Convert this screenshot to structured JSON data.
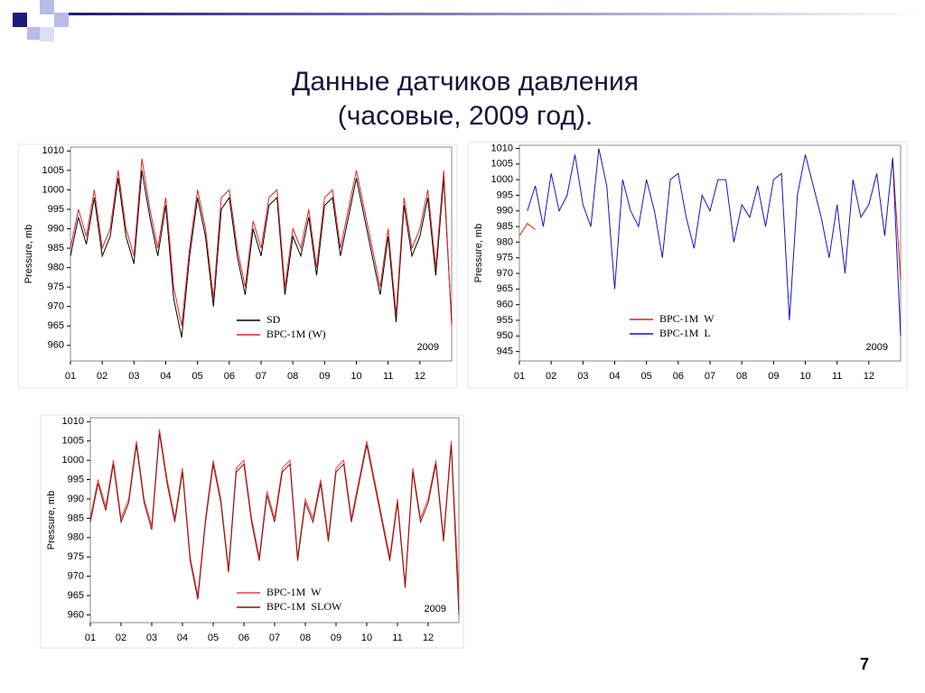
{
  "title": "Данные датчиков давления",
  "subtitle": "(часовые, 2009 год).",
  "page_number": "7",
  "chart_data": [
    {
      "type": "line",
      "y_label": "Pressure, mb",
      "annotation": "2009",
      "xlim": [
        0,
        12
      ],
      "ylim": [
        956,
        1011
      ],
      "xticks": [
        {
          "value": 0,
          "label": "01"
        },
        {
          "value": 1,
          "label": "02"
        },
        {
          "value": 2,
          "label": "03"
        },
        {
          "value": 3,
          "label": "04"
        },
        {
          "value": 4,
          "label": "05"
        },
        {
          "value": 5,
          "label": "06"
        },
        {
          "value": 6,
          "label": "07"
        },
        {
          "value": 7,
          "label": "08"
        },
        {
          "value": 8,
          "label": "09"
        },
        {
          "value": 9,
          "label": "10"
        },
        {
          "value": 10,
          "label": "11"
        },
        {
          "value": 11,
          "label": "12"
        }
      ],
      "yticks": [
        960,
        965,
        970,
        975,
        980,
        985,
        990,
        995,
        1000,
        1005,
        1010
      ],
      "x": [
        0,
        0.25,
        0.5,
        0.75,
        1,
        1.25,
        1.5,
        1.75,
        2,
        2.25,
        2.5,
        2.75,
        3,
        3.25,
        3.5,
        3.75,
        4,
        4.25,
        4.5,
        4.75,
        5,
        5.25,
        5.5,
        5.75,
        6,
        6.25,
        6.5,
        6.75,
        7,
        7.25,
        7.5,
        7.75,
        8,
        8.25,
        8.5,
        8.75,
        9,
        9.25,
        9.5,
        9.75,
        10,
        10.25,
        10.5,
        10.75,
        11,
        11.25,
        11.5,
        11.75,
        12
      ],
      "series": [
        {
          "name": "SD",
          "color": "#000000",
          "values": [
            983,
            993,
            986,
            998,
            983,
            988,
            1003,
            988,
            981,
            1005,
            993,
            983,
            996,
            972,
            962,
            983,
            998,
            988,
            970,
            995,
            998,
            983,
            973,
            990,
            983,
            996,
            998,
            973,
            988,
            983,
            993,
            978,
            996,
            998,
            983,
            993,
            1003,
            993,
            983,
            973,
            988,
            966,
            996,
            983,
            988,
            998,
            978,
            1003,
            966
          ]
        },
        {
          "name": "BPC-1M (W)",
          "color": "#e02020",
          "values": [
            985,
            995,
            988,
            1000,
            985,
            990,
            1005,
            990,
            983,
            1008,
            995,
            985,
            998,
            975,
            965,
            985,
            1000,
            990,
            972,
            998,
            1000,
            985,
            975,
            992,
            985,
            998,
            1000,
            975,
            990,
            985,
            995,
            980,
            998,
            1000,
            985,
            995,
            1005,
            995,
            985,
            975,
            990,
            968,
            998,
            985,
            990,
            1000,
            980,
            1005,
            965
          ]
        }
      ]
    },
    {
      "type": "line",
      "y_label": "Pressure, mb",
      "annotation": "2009",
      "xlim": [
        0,
        12
      ],
      "ylim": [
        942,
        1011
      ],
      "xticks": [
        {
          "value": 0,
          "label": "01"
        },
        {
          "value": 1,
          "label": "02"
        },
        {
          "value": 2,
          "label": "03"
        },
        {
          "value": 3,
          "label": "04"
        },
        {
          "value": 4,
          "label": "05"
        },
        {
          "value": 5,
          "label": "06"
        },
        {
          "value": 6,
          "label": "07"
        },
        {
          "value": 7,
          "label": "08"
        },
        {
          "value": 8,
          "label": "09"
        },
        {
          "value": 9,
          "label": "10"
        },
        {
          "value": 10,
          "label": "11"
        },
        {
          "value": 11,
          "label": "12"
        }
      ],
      "yticks": [
        945,
        950,
        955,
        960,
        965,
        970,
        975,
        980,
        985,
        990,
        995,
        1000,
        1005,
        1010
      ],
      "x": [
        0,
        0.25,
        0.5,
        0.75,
        1,
        1.25,
        1.5,
        1.75,
        2,
        2.25,
        2.5,
        2.75,
        3,
        3.25,
        3.5,
        3.75,
        4,
        4.25,
        4.5,
        4.75,
        5,
        5.25,
        5.5,
        5.75,
        6,
        6.25,
        6.5,
        6.75,
        7,
        7.25,
        7.5,
        7.75,
        8,
        8.25,
        8.5,
        8.75,
        9,
        9.25,
        9.5,
        9.75,
        10,
        10.25,
        10.5,
        10.75,
        11,
        11.25,
        11.5,
        11.75,
        12
      ],
      "series": [
        {
          "name": "BPC-1M  W",
          "color": "#e02020",
          "values": [
            982,
            986,
            984,
            null,
            null,
            null,
            null,
            null,
            null,
            null,
            null,
            null,
            null,
            null,
            null,
            null,
            null,
            null,
            null,
            null,
            null,
            null,
            null,
            null,
            null,
            null,
            null,
            null,
            null,
            null,
            null,
            null,
            null,
            null,
            null,
            null,
            null,
            null,
            null,
            null,
            null,
            null,
            null,
            null,
            null,
            null,
            null,
            1007,
            968
          ]
        },
        {
          "name": "BPC-1M  L",
          "color": "#1414c0",
          "values": [
            null,
            990,
            998,
            985,
            1002,
            990,
            995,
            1008,
            992,
            985,
            1010,
            998,
            965,
            1000,
            990,
            985,
            1000,
            990,
            975,
            1000,
            1002,
            988,
            978,
            995,
            990,
            1000,
            1000,
            980,
            992,
            988,
            998,
            985,
            1000,
            1002,
            955,
            995,
            1008,
            998,
            988,
            975,
            992,
            970,
            1000,
            988,
            992,
            1002,
            982,
            1007,
            950
          ]
        }
      ]
    },
    {
      "type": "line",
      "y_label": "Pressure, mb",
      "annotation": "2009",
      "xlim": [
        0,
        12
      ],
      "ylim": [
        958,
        1011
      ],
      "xticks": [
        {
          "value": 0,
          "label": "01"
        },
        {
          "value": 1,
          "label": "02"
        },
        {
          "value": 2,
          "label": "03"
        },
        {
          "value": 3,
          "label": "04"
        },
        {
          "value": 4,
          "label": "05"
        },
        {
          "value": 5,
          "label": "06"
        },
        {
          "value": 6,
          "label": "07"
        },
        {
          "value": 7,
          "label": "08"
        },
        {
          "value": 8,
          "label": "09"
        },
        {
          "value": 9,
          "label": "10"
        },
        {
          "value": 10,
          "label": "11"
        },
        {
          "value": 11,
          "label": "12"
        }
      ],
      "yticks": [
        960,
        965,
        970,
        975,
        980,
        985,
        990,
        995,
        1000,
        1005,
        1010
      ],
      "x": [
        0,
        0.25,
        0.5,
        0.75,
        1,
        1.25,
        1.5,
        1.75,
        2,
        2.25,
        2.5,
        2.75,
        3,
        3.25,
        3.5,
        3.75,
        4,
        4.25,
        4.5,
        4.75,
        5,
        5.25,
        5.5,
        5.75,
        6,
        6.25,
        6.5,
        6.75,
        7,
        7.25,
        7.5,
        7.75,
        8,
        8.25,
        8.5,
        8.75,
        9,
        9.25,
        9.5,
        9.75,
        10,
        10.25,
        10.5,
        10.75,
        11,
        11.25,
        11.5,
        11.75,
        12
      ],
      "series": [
        {
          "name": "BPC-1M  W",
          "color": "#e04040",
          "values": [
            985,
            995,
            988,
            1000,
            985,
            990,
            1005,
            990,
            983,
            1008,
            995,
            985,
            998,
            975,
            965,
            985,
            1000,
            990,
            972,
            998,
            1000,
            985,
            975,
            992,
            985,
            998,
            1000,
            975,
            990,
            985,
            995,
            980,
            998,
            1000,
            985,
            995,
            1005,
            995,
            985,
            975,
            990,
            968,
            998,
            985,
            990,
            1000,
            980,
            1005,
            965
          ]
        },
        {
          "name": "BPC-1M  SLOW",
          "color": "#8b1010",
          "values": [
            984,
            994,
            987,
            999,
            984,
            989,
            1004,
            989,
            982,
            1007,
            994,
            984,
            997,
            974,
            964,
            984,
            999,
            989,
            971,
            997,
            999,
            984,
            974,
            991,
            984,
            997,
            999,
            974,
            989,
            984,
            994,
            979,
            997,
            999,
            984,
            994,
            1004,
            994,
            984,
            974,
            989,
            967,
            997,
            984,
            989,
            999,
            979,
            1004,
            960
          ]
        }
      ]
    }
  ]
}
